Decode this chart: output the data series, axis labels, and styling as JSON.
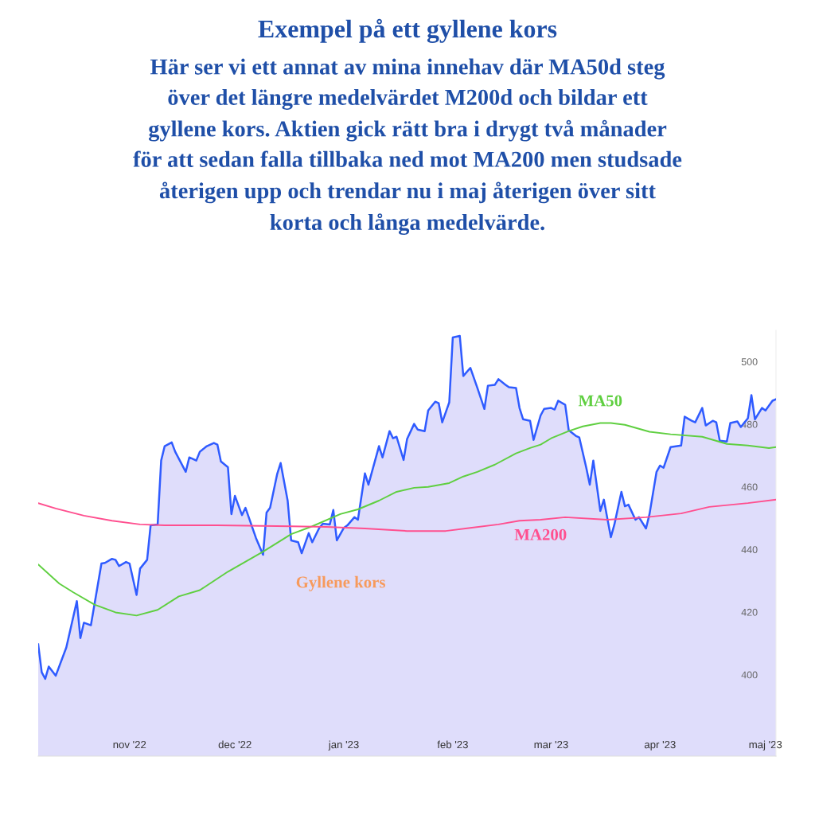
{
  "chart_data": {
    "type": "line",
    "title": "Exempel på ett gyllene kors",
    "subtitle": "Här ser vi ett annat av mina innehav där MA50d steg\növer det längre medelvärdet M200d och bildar ett\ngyllene kors. Aktien gick rätt bra i drygt två månader\nför att sedan falla tillbaka ned mot MA200 men studsade\nåterigen upp och trendar nu i maj återigen över sitt\nkorta och långa medelvärde.",
    "annotations": [
      "Gyllene kors"
    ],
    "xlim": [
      "2022-10-06",
      "2023-05-04"
    ],
    "xticks": [
      {
        "value": "2022-11-01",
        "label": "nov '22"
      },
      {
        "value": "2022-12-01",
        "label": "dec '22"
      },
      {
        "value": "2023-01-01",
        "label": "jan '23"
      },
      {
        "value": "2023-02-01",
        "label": "feb '23"
      },
      {
        "value": "2023-03-01",
        "label": "mar '23"
      },
      {
        "value": "2023-04-01",
        "label": "apr '23"
      },
      {
        "value": "2023-05-01",
        "label": "maj '23"
      }
    ],
    "ylim": [
      374,
      510
    ],
    "yticks": [
      400,
      420,
      440,
      460,
      480,
      500
    ],
    "grid": false,
    "legend": false,
    "line_style": "solid",
    "marker": "none",
    "series": [
      {
        "type": "area",
        "color": "#2f5bff",
        "x": [
          "2022-10-06",
          "2022-10-07",
          "2022-10-08",
          "2022-10-09",
          "2022-10-11",
          "2022-10-14",
          "2022-10-17",
          "2022-10-18",
          "2022-10-19",
          "2022-10-21",
          "2022-10-24",
          "2022-10-25",
          "2022-10-27",
          "2022-10-28",
          "2022-10-29",
          "2022-10-31",
          "2022-11-01",
          "2022-11-03",
          "2022-11-04",
          "2022-11-06",
          "2022-11-07",
          "2022-11-09",
          "2022-11-10",
          "2022-11-11",
          "2022-11-13",
          "2022-11-14",
          "2022-11-17",
          "2022-11-18",
          "2022-11-20",
          "2022-11-21",
          "2022-11-23",
          "2022-11-25",
          "2022-11-26",
          "2022-11-27",
          "2022-11-29",
          "2022-11-30",
          "2022-12-01",
          "2022-12-03",
          "2022-12-04",
          "2022-12-07",
          "2022-12-09",
          "2022-12-10",
          "2022-12-11",
          "2022-12-13",
          "2022-12-14",
          "2022-12-16",
          "2022-12-17",
          "2022-12-19",
          "2022-12-20",
          "2022-12-22",
          "2022-12-23",
          "2022-12-25",
          "2022-12-26",
          "2022-12-28",
          "2022-12-29",
          "2022-12-30",
          "2023-01-01",
          "2023-01-02",
          "2023-01-04",
          "2023-01-05",
          "2023-01-07",
          "2023-01-08",
          "2023-01-11",
          "2023-01-12",
          "2023-01-14",
          "2023-01-15",
          "2023-01-16",
          "2023-01-18",
          "2023-01-19",
          "2023-01-21",
          "2023-01-22",
          "2023-01-24",
          "2023-01-25",
          "2023-01-27",
          "2023-01-28",
          "2023-01-29",
          "2023-01-31",
          "2023-02-01",
          "2023-02-03",
          "2023-02-04",
          "2023-02-06",
          "2023-02-08",
          "2023-02-10",
          "2023-02-11",
          "2023-02-13",
          "2023-02-14",
          "2023-02-16",
          "2023-02-17",
          "2023-02-19",
          "2023-02-20",
          "2023-02-21",
          "2023-02-23",
          "2023-02-24",
          "2023-02-26",
          "2023-02-27",
          "2023-03-01",
          "2023-03-02",
          "2023-03-03",
          "2023-03-05",
          "2023-03-06",
          "2023-03-08",
          "2023-03-09",
          "2023-03-11",
          "2023-03-12",
          "2023-03-13",
          "2023-03-15",
          "2023-03-16",
          "2023-03-18",
          "2023-03-19",
          "2023-03-21",
          "2023-03-22",
          "2023-03-23",
          "2023-03-25",
          "2023-03-26",
          "2023-03-28",
          "2023-03-29",
          "2023-03-31",
          "2023-04-01",
          "2023-04-02",
          "2023-04-04",
          "2023-04-07",
          "2023-04-08",
          "2023-04-10",
          "2023-04-11",
          "2023-04-13",
          "2023-04-14",
          "2023-04-16",
          "2023-04-17",
          "2023-04-18",
          "2023-04-20",
          "2023-04-21",
          "2023-04-23",
          "2023-04-24",
          "2023-04-26",
          "2023-04-27",
          "2023-04-28",
          "2023-04-30",
          "2023-05-01",
          "2023-05-03",
          "2023-05-04"
        ],
        "values": [
          409.7,
          400.8,
          398.7,
          402.6,
          399.7,
          408.7,
          423.5,
          411.7,
          416.6,
          415.8,
          435.5,
          435.7,
          437,
          436.7,
          434.7,
          436,
          435.5,
          425.5,
          433.9,
          436.7,
          447.7,
          448,
          468.4,
          473,
          474.2,
          471.2,
          464.8,
          469.4,
          468.4,
          471.2,
          473,
          474,
          473.5,
          468.1,
          466.3,
          451.3,
          457.1,
          451,
          453.3,
          443.6,
          438.3,
          451.8,
          453.3,
          464,
          467.6,
          455.6,
          442.9,
          442.3,
          438.8,
          445.2,
          442.3,
          446.9,
          448.2,
          448,
          452.6,
          442.9,
          446.9,
          447.7,
          450.3,
          449.5,
          464.3,
          460.7,
          473,
          469.4,
          477.8,
          475.5,
          476,
          468.6,
          475.3,
          480.1,
          478.3,
          477.8,
          484.4,
          487.2,
          486.7,
          480.6,
          487,
          507.7,
          508.2,
          495.4,
          498,
          491.6,
          484.9,
          492.3,
          492.6,
          494.4,
          492.6,
          491.8,
          491.6,
          485.2,
          481.6,
          481.1,
          475,
          482.8,
          484.9,
          485.2,
          484.7,
          487.5,
          486.2,
          478.1,
          476.3,
          475.8,
          466.1,
          460.7,
          468.4,
          452.3,
          455.9,
          443.9,
          448,
          458.4,
          453.8,
          454.3,
          449.5,
          450.3,
          446.7,
          451.3,
          464.8,
          466.8,
          466.1,
          472.7,
          473.2,
          482.4,
          481.1,
          480.6,
          485.2,
          479.6,
          481.1,
          480.6,
          474.7,
          474.5,
          480.4,
          480.9,
          479.1,
          481.9,
          489.3,
          481.6,
          485.2,
          484.4,
          487.5,
          488
        ]
      },
      {
        "name": "MA50",
        "color": "#5fcf40",
        "x": [
          "2022-10-06",
          "2022-10-12",
          "2022-10-16",
          "2022-10-22",
          "2022-10-28",
          "2022-11-03",
          "2022-11-09",
          "2022-11-15",
          "2022-11-21",
          "2022-11-29",
          "2022-12-09",
          "2022-12-17",
          "2022-12-23",
          "2022-12-31",
          "2023-01-05",
          "2023-01-11",
          "2023-01-16",
          "2023-01-21",
          "2023-01-25",
          "2023-01-31",
          "2023-02-04",
          "2023-02-08",
          "2023-02-13",
          "2023-02-19",
          "2023-02-23",
          "2023-02-26",
          "2023-03-01",
          "2023-03-06",
          "2023-03-10",
          "2023-03-15",
          "2023-03-18",
          "2023-03-22",
          "2023-03-29",
          "2023-04-04",
          "2023-04-13",
          "2023-04-20",
          "2023-04-26",
          "2023-05-02",
          "2023-05-04"
        ],
        "values": [
          435.2,
          429.1,
          426.3,
          422.4,
          419.9,
          418.9,
          420.7,
          425,
          427,
          432.9,
          439.3,
          444.9,
          447.4,
          451.3,
          452.8,
          455.6,
          458.4,
          459.7,
          460,
          461.2,
          463.3,
          464.8,
          467.1,
          470.7,
          472.4,
          473.5,
          475.5,
          477.8,
          479.3,
          480.4,
          480.4,
          479.8,
          477.6,
          476.8,
          476,
          473.7,
          473.2,
          472.4,
          472.7
        ]
      },
      {
        "name": "MA200",
        "color": "#ff4f8f",
        "x": [
          "2022-10-06",
          "2022-10-11",
          "2022-10-19",
          "2022-10-27",
          "2022-11-04",
          "2022-11-11",
          "2022-11-26",
          "2022-12-17",
          "2022-12-27",
          "2023-01-07",
          "2023-01-19",
          "2023-01-30",
          "2023-02-06",
          "2023-02-14",
          "2023-02-20",
          "2023-02-26",
          "2023-03-05",
          "2023-03-17",
          "2023-03-28",
          "2023-04-07",
          "2023-04-15",
          "2023-04-26",
          "2023-05-04"
        ],
        "values": [
          454.8,
          453.1,
          450.8,
          449.2,
          448,
          447.7,
          447.7,
          447.4,
          447.2,
          446.7,
          445.9,
          445.9,
          446.9,
          448,
          449.2,
          449.5,
          450.3,
          449.5,
          450.3,
          451.5,
          453.6,
          454.8,
          455.9
        ]
      }
    ]
  }
}
